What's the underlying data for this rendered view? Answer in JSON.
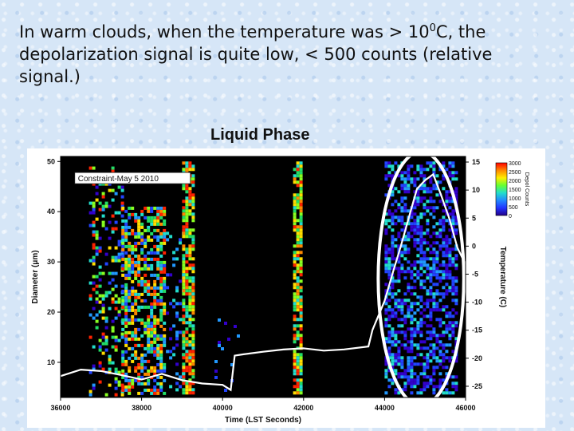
{
  "slide": {
    "caption_part1": "In warm clouds, when the temperature was > 10",
    "caption_sup": "0",
    "caption_part2": "C, the depolarization signal is quite low, < 500 counts (relative signal.)",
    "plot_title": "Liquid Phase"
  },
  "chart_data": {
    "type": "heatmap",
    "title": "Liquid Phase",
    "annotation": "Constraint-May 5 2010",
    "xlabel": "Time (LST Seconds)",
    "ylabel": "Diameter (μm)",
    "y2label": "Temperature (C)",
    "colorbar_label": "Depol Counts",
    "xlim": [
      36000,
      46000
    ],
    "ylim": [
      3,
      51
    ],
    "y2lim": [
      -27,
      16
    ],
    "x_ticks": [
      "36000",
      "38000",
      "40000",
      "42000",
      "44000",
      "46000"
    ],
    "y_ticks": [
      "10",
      "20",
      "30",
      "40",
      "50"
    ],
    "y2_ticks": [
      "15",
      "10",
      "5",
      "0",
      "-5",
      "-10",
      "-15",
      "-20",
      "-25"
    ],
    "colorbar_ticks": [
      "3000",
      "2500",
      "2000",
      "1500",
      "1000",
      "500",
      "0"
    ],
    "colorbar_range": [
      0,
      3000
    ],
    "temperature_series": {
      "time": [
        36000,
        36500,
        37000,
        37500,
        38000,
        38500,
        39000,
        39500,
        40000,
        40200,
        40300,
        40500,
        41000,
        41500,
        42000,
        42500,
        43000,
        43600,
        43700,
        44000,
        44200,
        44400,
        44600,
        44800,
        45000,
        45200,
        45400,
        45600,
        45800,
        46000
      ],
      "temp_c": [
        -23,
        -22.3,
        -22.5,
        -23,
        -24,
        -22.6,
        -24,
        -24.5,
        -25,
        -25.6,
        -19.5,
        -19.5,
        -19,
        -18.5,
        -18.5,
        -18.5,
        -18.5,
        -18,
        -15,
        -10,
        -5,
        0,
        5,
        10,
        12,
        13,
        9,
        5,
        0,
        -3
      ]
    },
    "depolarization_bands": [
      {
        "time_start": 36800,
        "time_end": 37500,
        "diameter_max": 48,
        "counts": "mixed 1000-3000"
      },
      {
        "time_start": 37500,
        "time_end": 38600,
        "diameter_max": 41,
        "counts": "mixed 500-3000"
      },
      {
        "time_start": 39000,
        "time_end": 39300,
        "diameter_max": 50,
        "counts": "1500-3000"
      },
      {
        "time_start": 41750,
        "time_end": 41900,
        "diameter_max": 50,
        "counts": "1500-3000"
      },
      {
        "time_start": 44000,
        "time_end": 45800,
        "diameter_max": 50,
        "counts": "< 500"
      }
    ],
    "highlight": {
      "shape": "ellipse",
      "color": "#ffffff",
      "time_range": [
        44000,
        45800
      ]
    },
    "colors": {
      "background": "#000000",
      "temperature_line": "#ffffff",
      "ellipse": "#ffffff"
    }
  }
}
